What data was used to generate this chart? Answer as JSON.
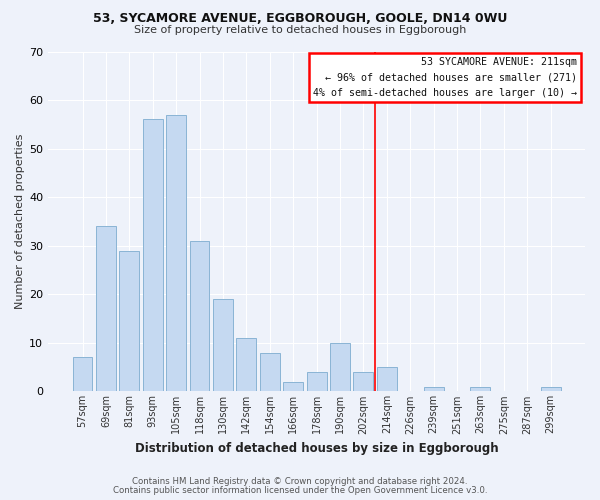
{
  "title1": "53, SYCAMORE AVENUE, EGGBOROUGH, GOOLE, DN14 0WU",
  "title2": "Size of property relative to detached houses in Eggborough",
  "xlabel": "Distribution of detached houses by size in Eggborough",
  "ylabel": "Number of detached properties",
  "bar_labels": [
    "57sqm",
    "69sqm",
    "81sqm",
    "93sqm",
    "105sqm",
    "118sqm",
    "130sqm",
    "142sqm",
    "154sqm",
    "166sqm",
    "178sqm",
    "190sqm",
    "202sqm",
    "214sqm",
    "226sqm",
    "239sqm",
    "251sqm",
    "263sqm",
    "275sqm",
    "287sqm",
    "299sqm"
  ],
  "bar_heights": [
    7,
    34,
    29,
    56,
    57,
    31,
    19,
    11,
    8,
    2,
    4,
    10,
    4,
    5,
    0,
    1,
    0,
    1,
    0,
    0,
    1
  ],
  "bar_color": "#c5d9f1",
  "bar_edge_color": "#8ab4d4",
  "red_line_index": 13,
  "annotation_line1": "53 SYCAMORE AVENUE: 211sqm",
  "annotation_line2": "← 96% of detached houses are smaller (271)",
  "annotation_line3": "4% of semi-detached houses are larger (10) →",
  "ylim": [
    0,
    70
  ],
  "yticks": [
    0,
    10,
    20,
    30,
    40,
    50,
    60,
    70
  ],
  "footer1": "Contains HM Land Registry data © Crown copyright and database right 2024.",
  "footer2": "Contains public sector information licensed under the Open Government Licence v3.0.",
  "background_color": "#eef2fa"
}
